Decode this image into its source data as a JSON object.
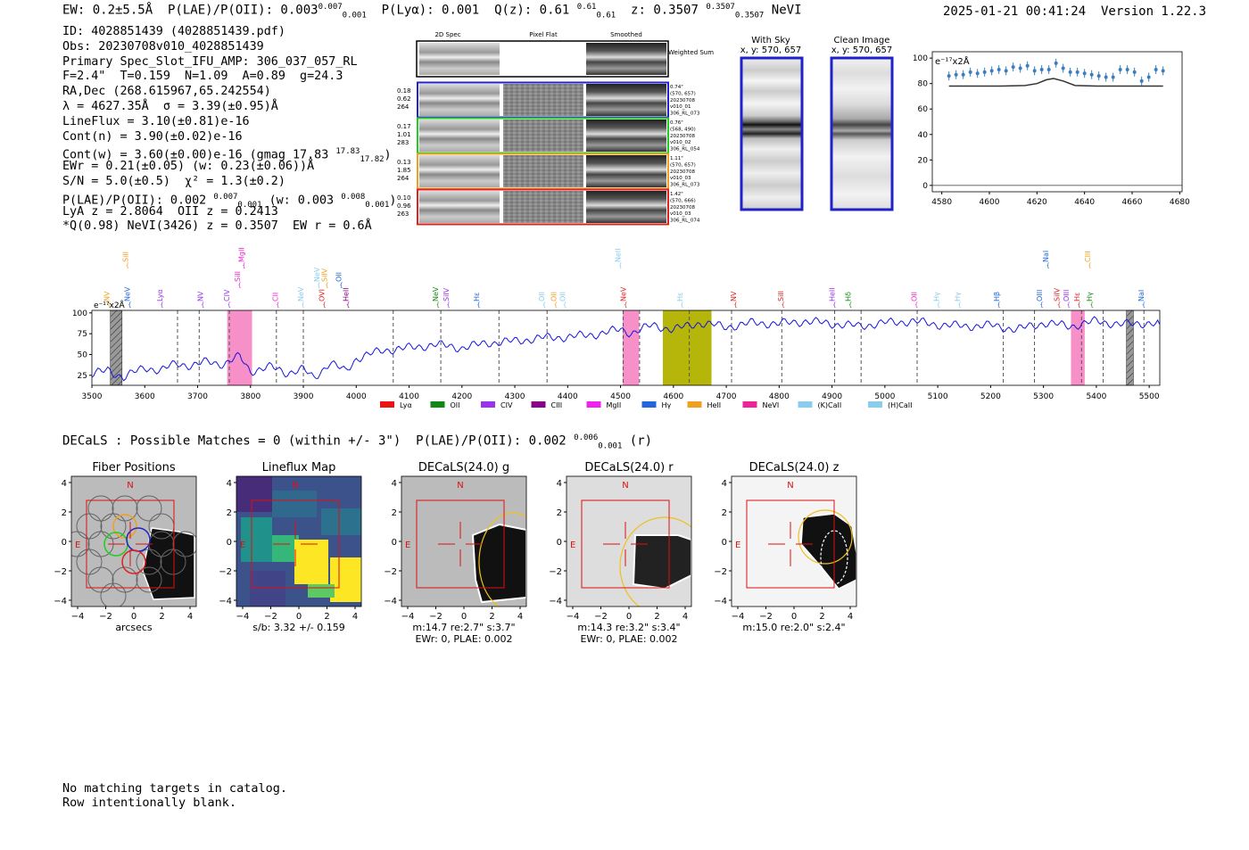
{
  "header": {
    "line": "EW: 0.2±5.5Å  P(LAE)/P(OII): 0.003",
    "pe_sup": "0.007",
    "pe_sub": "0.001",
    "plya": "P(Lyα): 0.001",
    "q": "Q(z): 0.61",
    "q_sup": "0.61",
    "q_sub": "0.61",
    "z": "z: 0.3507",
    "z_sup": "0.3507",
    "z_sub": "0.3507",
    "class": "NeVI"
  },
  "timestamp": "2025-01-21 00:41:24  Version 1.22.3",
  "info": {
    "id": "ID: 4028851439 (4028851439.pdf)",
    "obs": "Obs: 20230708v010_4028851439",
    "slot": "Primary Spec_Slot_IFU_AMP: 306_037_057_RL",
    "fit": "F=2.4\"  T=0.159  N=1.09  A=0.89  g=24.3",
    "radec": "RA,Dec (268.615967,65.242554)",
    "lambda": "λ = 4627.35Å  σ = 3.39(±0.95)Å",
    "lineflux": "LineFlux = 3.10(±0.81)e-16",
    "contn": "Cont(n) = 3.90(±0.02)e-16",
    "contw": "Cont(w) = 3.60(±0.00)e-16 (gmag 17.83",
    "gmag_sup": "17.83",
    "gmag_sub": "17.82",
    "ewr": "EWr = 0.21(±0.05) (w: 0.23(±0.06))Å",
    "sn": "S/N = 5.0(±0.5)  χ² = 1.3(±0.2)",
    "plae": "P(LAE)/P(OII): 0.002",
    "plae_sup1": "0.007",
    "plae_sub1": "0.001",
    "plae_w": "(w: 0.003",
    "plae_sup2": "0.008",
    "plae_sub2": "0.001",
    "lya": "LyA z = 2.8064  OII z = 0.2413",
    "q": "*Q(0.98) NeVI(3426) z = 0.3507  EW r = 0.6Å"
  },
  "cutouts": {
    "col_titles": [
      "2D Spec",
      "Pixel Flat",
      "Smoothed"
    ],
    "weighted_label": "Weighted Sum",
    "rows": [
      {
        "left": [
          "0.18",
          "0.62",
          "264"
        ],
        "right": [
          "0.74\"",
          "(570, 657)",
          "20230708",
          "v010_01",
          "306_RL_073"
        ],
        "color": "#2222cc"
      },
      {
        "left": [
          "0.17",
          "1.01",
          "283"
        ],
        "right": [
          "0.76\"",
          "(568, 490)",
          "20230708",
          "v010_02",
          "306_RL_054"
        ],
        "color": "#22cc22"
      },
      {
        "left": [
          "0.13",
          "1.85",
          "264"
        ],
        "right": [
          "1.11\"",
          "(570, 657)",
          "20230708",
          "v010_03",
          "306_RL_073"
        ],
        "color": "#f0a020"
      },
      {
        "left": [
          "0.10",
          "0.96",
          "263"
        ],
        "right": [
          "1.42\"",
          "(570, 666)",
          "20230708",
          "v010_03",
          "306_RL_074"
        ],
        "color": "#dd2222"
      }
    ]
  },
  "sky": {
    "with_sky_title": "With Sky",
    "with_sky_xy": "x, y: 570, 657",
    "clean_title": "Clean Image",
    "clean_xy": "x, y: 570, 657"
  },
  "zoom_chart": {
    "ylabel": "e⁻¹⁷x2Å",
    "xticks": [
      "4580",
      "4600",
      "4620",
      "4640",
      "4660",
      "4680"
    ],
    "yticks": [
      "0",
      "20",
      "40",
      "60",
      "80",
      "100"
    ]
  },
  "chart_data": [
    {
      "type": "line",
      "title": "zoom spectrum",
      "xlabel": "",
      "ylabel": "e-17 x2A",
      "xlim": [
        4576,
        4681
      ],
      "ylim": [
        -5,
        105
      ],
      "series": [
        {
          "name": "flux",
          "x": [
            4583,
            4586,
            4589,
            4592,
            4595,
            4598,
            4601,
            4604,
            4607,
            4610,
            4613,
            4616,
            4619,
            4622,
            4625,
            4628,
            4631,
            4634,
            4637,
            4640,
            4643,
            4646,
            4649,
            4652,
            4655,
            4658,
            4661,
            4664,
            4667,
            4670,
            4673
          ],
          "y": [
            86,
            87,
            87,
            89,
            88,
            89,
            90,
            91,
            90,
            93,
            92,
            94,
            90,
            91,
            91,
            96,
            92,
            89,
            89,
            88,
            87,
            86,
            85,
            85,
            91,
            91,
            89,
            82,
            85,
            91,
            90
          ]
        },
        {
          "name": "fit",
          "x": [
            4583,
            4605,
            4615,
            4620,
            4624,
            4627,
            4631,
            4636,
            4645,
            4673
          ],
          "y": [
            78,
            78,
            78.5,
            80,
            83,
            84,
            82,
            78.5,
            78,
            78
          ]
        }
      ]
    },
    {
      "type": "line",
      "title": "full spectrum",
      "xlabel": "",
      "ylabel": "e-17 x2A",
      "xlim": [
        3500,
        5520
      ],
      "ylim": [
        13,
        103
      ],
      "yticks": [
        25,
        50,
        75,
        100
      ],
      "xticks": [
        3500,
        3600,
        3700,
        3800,
        3900,
        4000,
        4100,
        4200,
        4300,
        4400,
        4500,
        4600,
        4700,
        4800,
        4900,
        5000,
        5100,
        5200,
        5300,
        5400,
        5500
      ],
      "series": [
        {
          "name": "flux",
          "x": [
            3500,
            3530,
            3560,
            3600,
            3630,
            3660,
            3690,
            3720,
            3750,
            3780,
            3800,
            3840,
            3870,
            3900,
            3920,
            3950,
            3980,
            4000,
            4050,
            4100,
            4150,
            4200,
            4250,
            4300,
            4350,
            4400,
            4450,
            4500,
            4520,
            4560,
            4600,
            4650,
            4700,
            4750,
            4800,
            4850,
            4900,
            4950,
            5000,
            5050,
            5100,
            5150,
            5200,
            5250,
            5300,
            5350,
            5400,
            5450,
            5500,
            5520
          ],
          "y": [
            25,
            32,
            22,
            35,
            30,
            40,
            36,
            42,
            38,
            48,
            30,
            35,
            28,
            32,
            22,
            40,
            30,
            45,
            55,
            58,
            62,
            58,
            64,
            66,
            70,
            71,
            74,
            80,
            76,
            85,
            80,
            88,
            83,
            88,
            87,
            90,
            87,
            84,
            88,
            90,
            86,
            84,
            85,
            80,
            88,
            84,
            90,
            86,
            88,
            86
          ]
        }
      ],
      "shaded_pink": [
        [
          3756,
          3803
        ],
        [
          4504,
          4535
        ],
        [
          5352,
          5378
        ]
      ],
      "shaded_olive": [
        [
          4580,
          4672
        ]
      ],
      "hatched": [
        [
          3535,
          3557
        ],
        [
          5457,
          5470
        ]
      ],
      "dashed_lines": [
        3662,
        3703,
        3760,
        3849,
        3900,
        4070,
        4160,
        4270,
        4361,
        4505,
        4536,
        4630,
        4710,
        4805,
        4905,
        4955,
        5061,
        5224,
        5283,
        5372,
        5413,
        5490
      ]
    }
  ],
  "spectrum": {
    "ylabel": "e⁻¹⁷x2Å",
    "line_labels": [
      {
        "t": "NV",
        "x": 3533,
        "row": 0,
        "c": "#f0a020"
      },
      {
        "t": "SiII",
        "x": 3568,
        "row": 2,
        "c": "#f0a020"
      },
      {
        "t": "NeV",
        "x": 3572,
        "row": 0,
        "c": "#2266dd"
      },
      {
        "t": "Lyα",
        "x": 3633,
        "row": 0,
        "c": "#9933ee"
      },
      {
        "t": "NV",
        "x": 3710,
        "row": 0,
        "c": "#9933ee"
      },
      {
        "t": "SiII",
        "x": 3780,
        "row": 1,
        "c": "#ee22cc"
      },
      {
        "t": "CIV",
        "x": 3760,
        "row": 0,
        "c": "#9933ee"
      },
      {
        "t": "MgII",
        "x": 3788,
        "row": 2,
        "c": "#ee22cc"
      },
      {
        "t": "CII",
        "x": 3852,
        "row": 0,
        "c": "#ee22cc"
      },
      {
        "t": "NeV",
        "x": 3900,
        "row": 0,
        "c": "#88ccee"
      },
      {
        "t": "NeV",
        "x": 3930,
        "row": 1,
        "c": "#88ccee"
      },
      {
        "t": "SiIV",
        "x": 3945,
        "row": 1,
        "c": "#f0a020"
      },
      {
        "t": "OII",
        "x": 3972,
        "row": 1,
        "c": "#2266dd"
      },
      {
        "t": "OVI",
        "x": 3940,
        "row": 0,
        "c": "#dd2222"
      },
      {
        "t": "HeII",
        "x": 3985,
        "row": 0,
        "c": "#880088"
      },
      {
        "t": "NeV",
        "x": 4155,
        "row": 0,
        "c": "#118811"
      },
      {
        "t": "SiIV",
        "x": 4175,
        "row": 0,
        "c": "#9933ee"
      },
      {
        "t": "Hε",
        "x": 4232,
        "row": 0,
        "c": "#2266dd"
      },
      {
        "t": "OII",
        "x": 4356,
        "row": 0,
        "c": "#88ccee"
      },
      {
        "t": "OII",
        "x": 4378,
        "row": 0,
        "c": "#f0a020"
      },
      {
        "t": "OII",
        "x": 4395,
        "row": 0,
        "c": "#88ccee"
      },
      {
        "t": "NeII",
        "x": 4500,
        "row": 2,
        "c": "#88ccee"
      },
      {
        "t": "NeV",
        "x": 4510,
        "row": 0,
        "c": "#dd2222"
      },
      {
        "t": "Hε",
        "x": 4617,
        "row": 0,
        "c": "#88ccee"
      },
      {
        "t": "NV",
        "x": 4718,
        "row": 0,
        "c": "#dd2222"
      },
      {
        "t": "SiII",
        "x": 4808,
        "row": 0,
        "c": "#dd2222"
      },
      {
        "t": "HeII",
        "x": 4905,
        "row": 0,
        "c": "#9933ee"
      },
      {
        "t": "Hδ",
        "x": 4935,
        "row": 0,
        "c": "#118811"
      },
      {
        "t": "OII",
        "x": 5060,
        "row": 0,
        "c": "#ee22cc"
      },
      {
        "t": "Hγ",
        "x": 5102,
        "row": 0,
        "c": "#88ccee"
      },
      {
        "t": "Hγ",
        "x": 5142,
        "row": 0,
        "c": "#88ccee"
      },
      {
        "t": "Hβ",
        "x": 5216,
        "row": 0,
        "c": "#2266dd"
      },
      {
        "t": "NaI",
        "x": 5309,
        "row": 2,
        "c": "#2266dd"
      },
      {
        "t": "OIII",
        "x": 5297,
        "row": 0,
        "c": "#2266dd"
      },
      {
        "t": "SiIV",
        "x": 5330,
        "row": 0,
        "c": "#dd2222"
      },
      {
        "t": "OIII",
        "x": 5348,
        "row": 0,
        "c": "#9933ee"
      },
      {
        "t": "CIII",
        "x": 5388,
        "row": 2,
        "c": "#f0a020"
      },
      {
        "t": "Hε",
        "x": 5368,
        "row": 0,
        "c": "#dd2222"
      },
      {
        "t": "Hγ",
        "x": 5392,
        "row": 0,
        "c": "#118811"
      },
      {
        "t": "NaI",
        "x": 5490,
        "row": 0,
        "c": "#2266dd"
      }
    ],
    "legend": [
      {
        "label": "Lyα",
        "c": "#ee1111"
      },
      {
        "label": "OII",
        "c": "#118811"
      },
      {
        "label": "CIV",
        "c": "#9933ee"
      },
      {
        "label": "CIII",
        "c": "#880088"
      },
      {
        "label": "MgII",
        "c": "#ee22ee"
      },
      {
        "label": "Hγ",
        "c": "#2266dd"
      },
      {
        "label": "HeII",
        "c": "#f0a020"
      },
      {
        "label": "NeVI",
        "c": "#ee2299"
      },
      {
        "label": "(K)CaII",
        "c": "#88ccee"
      },
      {
        "label": "(H)CaII",
        "c": "#88ccee"
      }
    ]
  },
  "decals": {
    "line": "DECaLS : Possible Matches = 0 (within +/- 3\")  P(LAE)/P(OII): 0.002",
    "sup": "0.006",
    "sub": "0.001",
    "tail": "(r)"
  },
  "panels": [
    {
      "title": "Fiber Positions",
      "cap1": "arcsecs",
      "cap2": ""
    },
    {
      "title": "Lineflux Map",
      "cap1": "s/b: 3.32 +/- 0.159",
      "cap2": ""
    },
    {
      "title": "DECaLS(24.0) g",
      "cap1": "m:14.7  re:2.7\"  s:3.7\"",
      "cap2": "EWr: 0, PLAE: 0.002"
    },
    {
      "title": "DECaLS(24.0) r",
      "cap1": "m:14.3  re:3.2\"  s:3.4\"",
      "cap2": "EWr: 0, PLAE: 0.002"
    },
    {
      "title": "DECaLS(24.0) z",
      "cap1": "m:15.0  re:2.0\"  s:2.4\"",
      "cap2": ""
    }
  ],
  "panel_axis": {
    "xticks": [
      "−4",
      "−2",
      "0",
      "2",
      "4"
    ],
    "yticks": [
      "4",
      "2",
      "0",
      "−2",
      "−4"
    ],
    "n": "N",
    "e": "E"
  },
  "no_match": {
    "l1": "No matching targets in catalog.",
    "l2": "Row intentionally blank."
  }
}
